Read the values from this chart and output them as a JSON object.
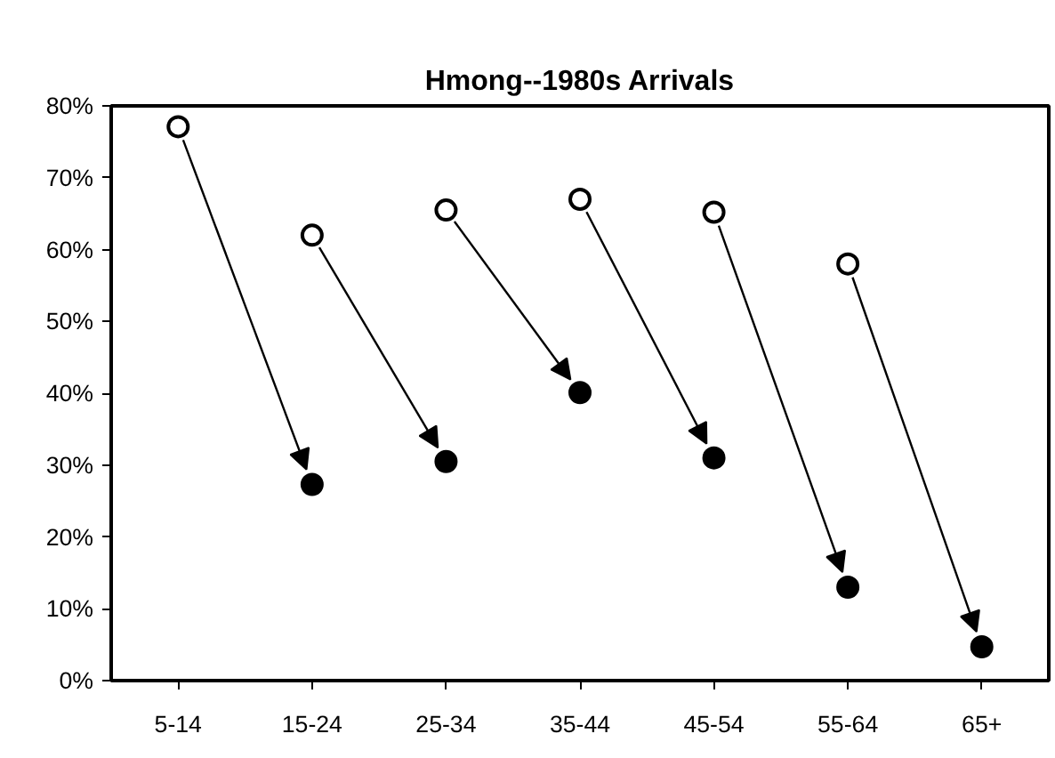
{
  "chart_data": {
    "type": "scatter",
    "title": "Hmong--1980s Arrivals",
    "categories": [
      "5-14",
      "15-24",
      "25-34",
      "35-44",
      "45-54",
      "55-64",
      "65+"
    ],
    "series": [
      {
        "color": "#ffffff",
        "values": [
          77.1,
          62.0,
          65.5,
          67.0,
          65.2,
          58.0,
          null
        ]
      },
      {
        "color": "#000000",
        "values": [
          null,
          27.3,
          30.5,
          40.1,
          31.0,
          13.0,
          4.7
        ]
      }
    ],
    "ylim": [
      0,
      80
    ],
    "yticks": [
      {
        "value": 0,
        "label": "0%"
      },
      {
        "value": 10,
        "label": "10%"
      },
      {
        "value": 20,
        "label": "20%"
      },
      {
        "value": 30,
        "label": "30%"
      },
      {
        "value": 40,
        "label": "40%"
      },
      {
        "value": 50,
        "label": "50%"
      },
      {
        "value": 60,
        "label": "60%"
      },
      {
        "value": 70,
        "label": "70%"
      },
      {
        "value": 80,
        "label": "80%"
      }
    ],
    "marker": "circle",
    "grid": false
  }
}
